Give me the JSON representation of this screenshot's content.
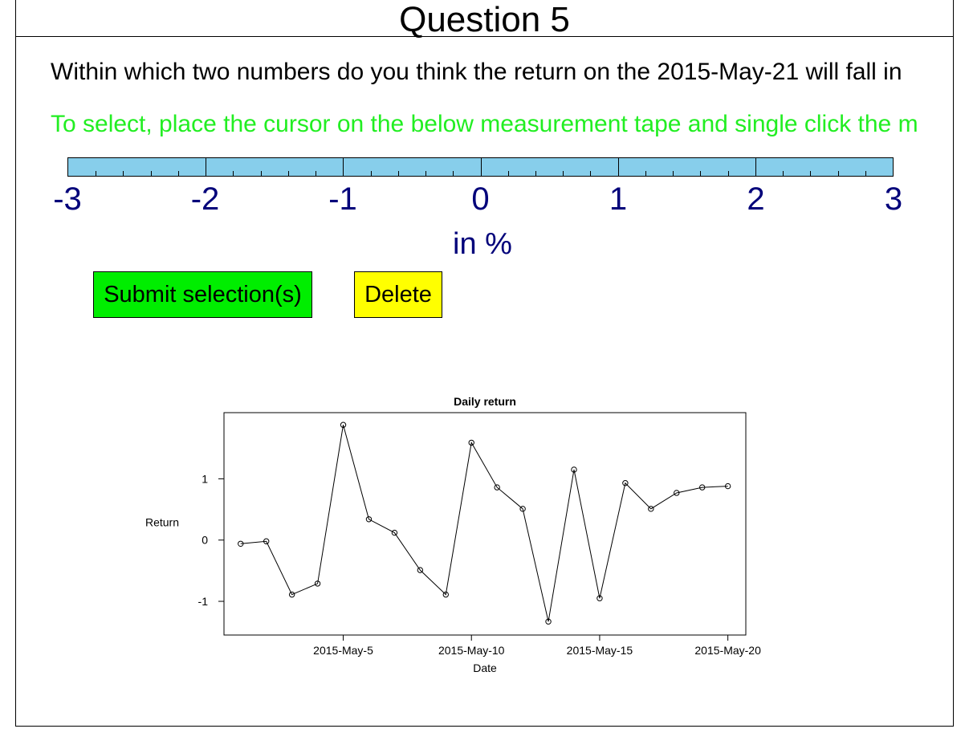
{
  "header": {
    "title": "Question 5"
  },
  "question": {
    "text": "Within which two numbers do you think the return on the 2015-May-21 will fall in",
    "instruction": "To select, place the cursor on the below measurement tape and single click the m",
    "instruction_color": "#22ee22"
  },
  "tape": {
    "labels": [
      "-3",
      "-2",
      "-1",
      "0",
      "1",
      "2",
      "3"
    ],
    "unit": "in %",
    "fill_color": "#87ceeb",
    "label_color": "#00007a"
  },
  "buttons": {
    "submit": {
      "label": "Submit selection(s)",
      "color": "#00ee00"
    },
    "delete": {
      "label": "Delete",
      "color": "#ffff00"
    }
  },
  "chart_data": {
    "type": "line",
    "title": "Daily return",
    "xlabel": "Date",
    "ylabel": "Return",
    "x_ticks": [
      "2015-May-5",
      "2015-May-10",
      "2015-May-15",
      "2015-May-20"
    ],
    "y_ticks": [
      "-1",
      "0",
      "1"
    ],
    "ylim": [
      -1.55,
      2.08
    ],
    "xlim": [
      0.35,
      20.7
    ],
    "series": [
      {
        "x": [
          "2015-May-1",
          "2015-May-2",
          "2015-May-3",
          "2015-May-4",
          "2015-May-5",
          "2015-May-6",
          "2015-May-7",
          "2015-May-8",
          "2015-May-9",
          "2015-May-10",
          "2015-May-11",
          "2015-May-12",
          "2015-May-13",
          "2015-May-14",
          "2015-May-15",
          "2015-May-16",
          "2015-May-17",
          "2015-May-18",
          "2015-May-19",
          "2015-May-20"
        ],
        "x_num": [
          1,
          2,
          3,
          4,
          5,
          6,
          7,
          8,
          9,
          10,
          11,
          12,
          13,
          14,
          15,
          16,
          17,
          18,
          19,
          20
        ],
        "values": [
          -0.06,
          -0.02,
          -0.89,
          -0.71,
          1.88,
          0.34,
          0.12,
          -0.49,
          -0.89,
          1.59,
          0.86,
          0.51,
          -1.33,
          1.15,
          -0.95,
          0.93,
          0.51,
          0.77,
          0.86,
          0.88
        ]
      }
    ]
  }
}
